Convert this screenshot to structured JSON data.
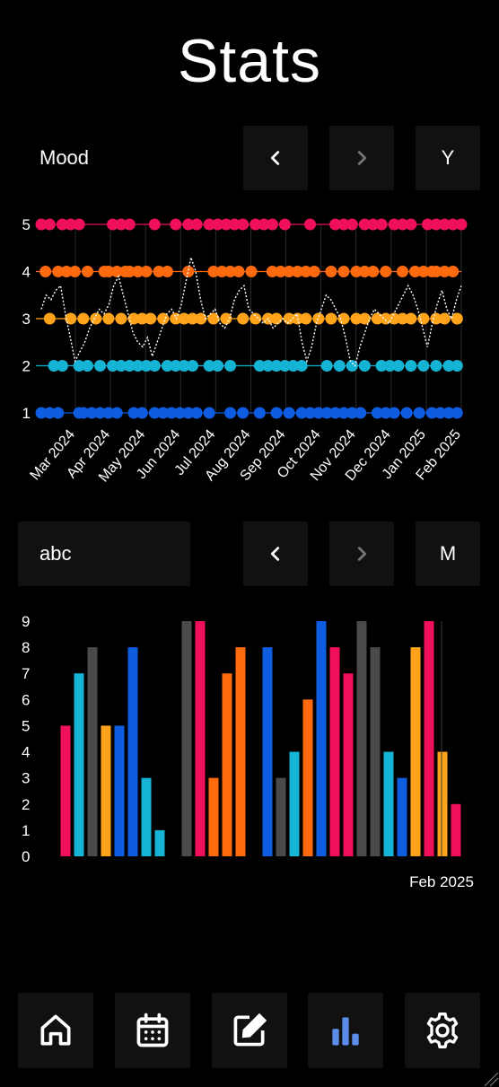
{
  "screen": {
    "title": "Stats"
  },
  "mood_panel": {
    "metric_label": "Mood",
    "range_label": "Y",
    "prev_icon": "chevron-left-icon",
    "next_icon": "chevron-right-icon"
  },
  "abc_panel": {
    "metric_label": "abc",
    "range_label": "M",
    "prev_icon": "chevron-left-icon",
    "next_icon": "chevron-right-icon"
  },
  "nav": [
    {
      "name": "home",
      "icon": "home-icon",
      "active": false
    },
    {
      "name": "calendar",
      "icon": "calendar-icon",
      "active": false
    },
    {
      "name": "edit",
      "icon": "edit-icon",
      "active": false
    },
    {
      "name": "stats",
      "icon": "bar-chart-icon",
      "active": true
    },
    {
      "name": "settings",
      "icon": "gear-icon",
      "active": false
    }
  ],
  "colors": {
    "mood5": "#f0105a",
    "mood4": "#ff6a0f",
    "mood3": "#ffa31a",
    "mood2": "#16b4d4",
    "mood1": "#0e5ce0",
    "gray": "#4a4a4a",
    "active_nav": "#5b8de8"
  },
  "chart_data": [
    {
      "type": "scatter",
      "title": "",
      "x_tick_labels": [
        "Mar 2024",
        "Apr 2024",
        "May 2024",
        "Jun 2024",
        "Jul 2024",
        "Aug 2024",
        "Sep 2024",
        "Oct 2024",
        "Nov 2024",
        "Dec 2024",
        "Jan 2025",
        "Feb 2025"
      ],
      "y_tick_labels": [
        "1",
        "2",
        "3",
        "4",
        "5"
      ],
      "ylim": [
        1,
        5
      ],
      "grid": true,
      "series": [
        {
          "y": 5,
          "color": "mood5",
          "x": [
            0.0,
            0.02,
            0.05,
            0.07,
            0.09,
            0.17,
            0.19,
            0.21,
            0.27,
            0.32,
            0.35,
            0.37,
            0.4,
            0.42,
            0.44,
            0.46,
            0.48,
            0.51,
            0.53,
            0.55,
            0.58,
            0.64,
            0.7,
            0.72,
            0.74,
            0.77,
            0.79,
            0.81,
            0.84,
            0.86,
            0.88,
            0.92,
            0.94,
            0.96,
            0.98,
            1.0
          ]
        },
        {
          "y": 4,
          "color": "mood4",
          "x": [
            0.01,
            0.04,
            0.06,
            0.08,
            0.11,
            0.15,
            0.16,
            0.18,
            0.2,
            0.21,
            0.23,
            0.25,
            0.28,
            0.3,
            0.35,
            0.41,
            0.43,
            0.45,
            0.47,
            0.5,
            0.55,
            0.57,
            0.59,
            0.61,
            0.63,
            0.65,
            0.69,
            0.72,
            0.75,
            0.77,
            0.79,
            0.82,
            0.86,
            0.89,
            0.91,
            0.93,
            0.94,
            0.96,
            0.98
          ]
        },
        {
          "y": 3,
          "color": "mood3",
          "x": [
            0.02,
            0.07,
            0.1,
            0.13,
            0.16,
            0.19,
            0.22,
            0.24,
            0.26,
            0.29,
            0.32,
            0.34,
            0.36,
            0.38,
            0.41,
            0.44,
            0.48,
            0.51,
            0.54,
            0.56,
            0.59,
            0.61,
            0.63,
            0.66,
            0.69,
            0.72,
            0.75,
            0.77,
            0.8,
            0.82,
            0.84,
            0.86,
            0.88,
            0.91,
            0.94,
            0.96,
            0.99
          ]
        },
        {
          "y": 2,
          "color": "mood2",
          "x": [
            0.03,
            0.05,
            0.09,
            0.11,
            0.14,
            0.17,
            0.19,
            0.21,
            0.23,
            0.25,
            0.27,
            0.3,
            0.32,
            0.34,
            0.36,
            0.4,
            0.42,
            0.45,
            0.52,
            0.54,
            0.56,
            0.58,
            0.6,
            0.62,
            0.68,
            0.71,
            0.74,
            0.77,
            0.81,
            0.83,
            0.85,
            0.88,
            0.91,
            0.94,
            0.97,
            0.99
          ]
        },
        {
          "y": 1,
          "color": "mood1",
          "x": [
            0.0,
            0.02,
            0.04,
            0.09,
            0.1,
            0.12,
            0.14,
            0.16,
            0.18,
            0.22,
            0.24,
            0.27,
            0.29,
            0.31,
            0.33,
            0.35,
            0.37,
            0.4,
            0.45,
            0.48,
            0.52,
            0.56,
            0.59,
            0.62,
            0.64,
            0.66,
            0.68,
            0.7,
            0.72,
            0.74,
            0.76,
            0.8,
            0.82,
            0.84,
            0.87,
            0.9,
            0.93,
            0.95,
            0.97,
            0.99
          ]
        }
      ],
      "avg_line": [
        3.2,
        3.5,
        3.4,
        3.6,
        3.7,
        3.1,
        2.6,
        2.1,
        2.3,
        2.5,
        2.8,
        3.0,
        3.2,
        3.1,
        3.3,
        3.7,
        3.9,
        3.5,
        3.1,
        2.7,
        2.5,
        2.4,
        2.6,
        2.2,
        2.5,
        2.8,
        3.1,
        3.2,
        3.0,
        3.3,
        3.8,
        4.3,
        4.0,
        3.4,
        3.0,
        3.1,
        3.2,
        2.9,
        2.8,
        3.0,
        3.4,
        3.6,
        3.7,
        3.2,
        3.1,
        3.0,
        2.9,
        3.0,
        2.8,
        2.9,
        3.0,
        2.9,
        3.0,
        3.1,
        2.5,
        2.1,
        2.4,
        2.9,
        3.2,
        3.5,
        3.4,
        3.2,
        3.0,
        2.6,
        2.1,
        2.0,
        2.4,
        2.7,
        3.0,
        3.2,
        3.1,
        3.0,
        2.9,
        3.1,
        3.3,
        3.5,
        3.7,
        3.5,
        3.2,
        2.8,
        2.4,
        2.9,
        3.3,
        3.6,
        3.2,
        3.0,
        3.4,
        3.7
      ]
    },
    {
      "type": "bar",
      "title": "",
      "x_tick_label": "Feb 2025",
      "y_tick_labels": [
        "0",
        "1",
        "2",
        "3",
        "4",
        "5",
        "6",
        "7",
        "8",
        "9"
      ],
      "ylim": [
        0,
        9
      ],
      "bars": [
        {
          "day": 1,
          "value": 5,
          "color": "mood5"
        },
        {
          "day": 2,
          "value": 7,
          "color": "mood2"
        },
        {
          "day": 3,
          "value": 8,
          "color": "gray"
        },
        {
          "day": 4,
          "value": 5,
          "color": "mood3"
        },
        {
          "day": 5,
          "value": 5,
          "color": "mood1"
        },
        {
          "day": 6,
          "value": 8,
          "color": "mood1"
        },
        {
          "day": 7,
          "value": 3,
          "color": "mood2"
        },
        {
          "day": 8,
          "value": 1,
          "color": "mood2"
        },
        {
          "day": 10,
          "value": 9,
          "color": "gray"
        },
        {
          "day": 11,
          "value": 9,
          "color": "mood5"
        },
        {
          "day": 12,
          "value": 3,
          "color": "mood4"
        },
        {
          "day": 13,
          "value": 7,
          "color": "mood4"
        },
        {
          "day": 14,
          "value": 8,
          "color": "mood4"
        },
        {
          "day": 16,
          "value": 8,
          "color": "mood1"
        },
        {
          "day": 17,
          "value": 3,
          "color": "gray"
        },
        {
          "day": 18,
          "value": 4,
          "color": "mood2"
        },
        {
          "day": 19,
          "value": 6,
          "color": "mood4"
        },
        {
          "day": 20,
          "value": 9,
          "color": "mood1"
        },
        {
          "day": 21,
          "value": 8,
          "color": "mood5"
        },
        {
          "day": 22,
          "value": 7,
          "color": "mood5"
        },
        {
          "day": 23,
          "value": 9,
          "color": "gray"
        },
        {
          "day": 24,
          "value": 8,
          "color": "gray"
        },
        {
          "day": 25,
          "value": 4,
          "color": "mood2"
        },
        {
          "day": 26,
          "value": 3,
          "color": "mood1"
        },
        {
          "day": 27,
          "value": 8,
          "color": "mood3"
        },
        {
          "day": 28,
          "value": 9,
          "color": "mood5"
        },
        {
          "day": 29,
          "value": 4,
          "color": "mood3"
        },
        {
          "day": 30,
          "value": 2,
          "color": "mood5"
        }
      ]
    }
  ]
}
